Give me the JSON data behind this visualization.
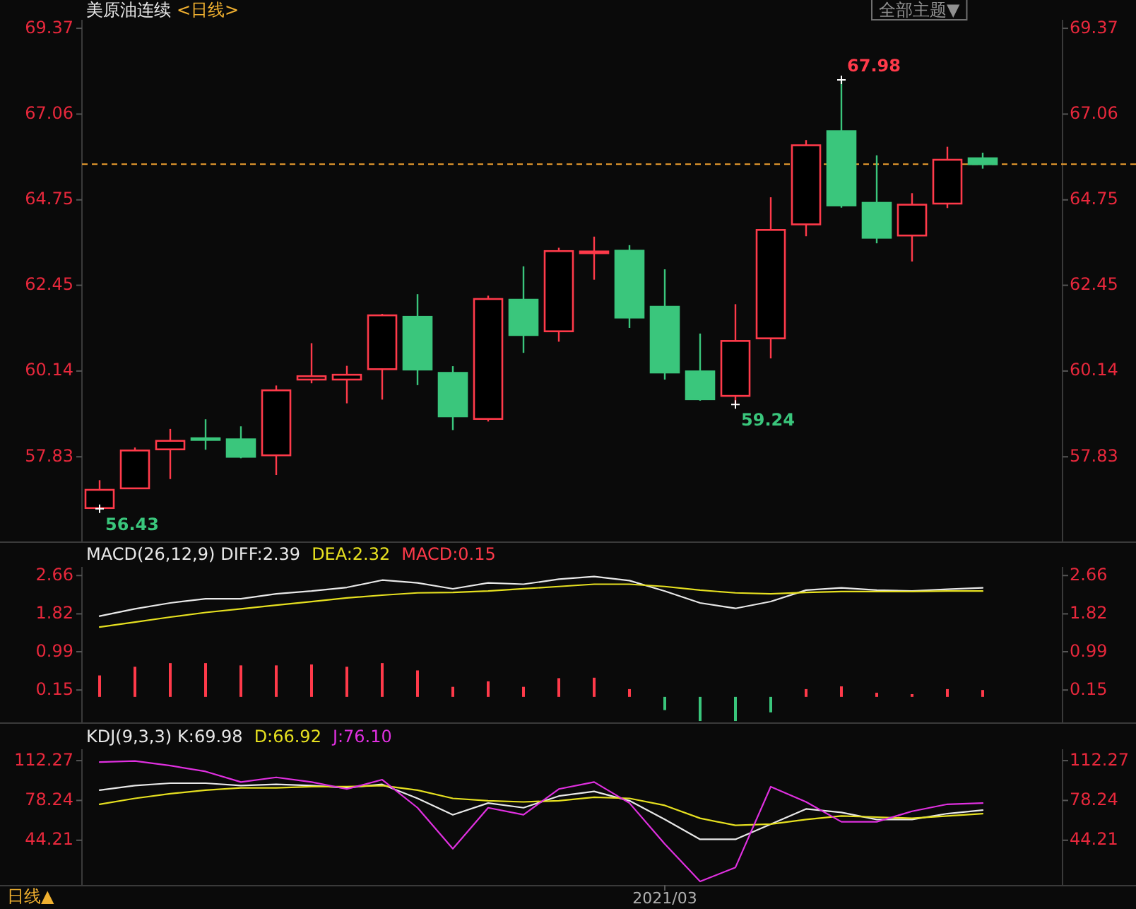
{
  "chart_data": [
    {
      "type": "candlestick",
      "title": "美原油连续",
      "subtitle": "<日线>",
      "tick_labels": "y",
      "categories": [
        null,
        null,
        null,
        null,
        null,
        null,
        null,
        null,
        null,
        null,
        null,
        null,
        null,
        null,
        null,
        null,
        null,
        null,
        null,
        null,
        null,
        null,
        null,
        null,
        null,
        null
      ],
      "ohlc": [
        [
          56.45,
          57.2,
          56.43,
          56.94
        ],
        [
          56.98,
          58.08,
          56.98,
          58.0
        ],
        [
          58.03,
          58.58,
          57.23,
          58.26
        ],
        [
          58.33,
          58.84,
          58.02,
          58.3
        ],
        [
          58.3,
          58.65,
          57.79,
          57.83
        ],
        [
          57.87,
          59.75,
          57.34,
          59.62
        ],
        [
          59.91,
          60.89,
          59.81,
          60.0
        ],
        [
          59.91,
          60.28,
          59.27,
          60.04
        ],
        [
          60.19,
          61.68,
          59.37,
          61.64
        ],
        [
          61.6,
          62.21,
          59.76,
          60.18
        ],
        [
          60.09,
          60.27,
          58.55,
          58.92
        ],
        [
          58.85,
          62.17,
          58.78,
          62.08
        ],
        [
          62.06,
          62.96,
          60.63,
          61.11
        ],
        [
          61.21,
          63.46,
          60.93,
          63.37
        ],
        [
          63.34,
          63.76,
          62.6,
          63.36
        ],
        [
          63.38,
          63.53,
          61.3,
          61.58
        ],
        [
          61.87,
          62.88,
          59.91,
          60.1
        ],
        [
          60.13,
          61.15,
          59.34,
          59.38
        ],
        [
          59.47,
          61.94,
          59.24,
          60.95
        ],
        [
          61.02,
          64.82,
          60.48,
          63.94
        ],
        [
          64.09,
          66.36,
          63.77,
          66.22
        ],
        [
          66.6,
          67.98,
          64.54,
          64.6
        ],
        [
          64.67,
          65.95,
          63.58,
          63.73
        ],
        [
          63.79,
          64.93,
          63.09,
          64.62
        ],
        [
          64.65,
          66.18,
          64.53,
          65.83
        ],
        [
          65.87,
          66.02,
          65.59,
          65.71
        ]
      ],
      "colors": [
        "#ff3a4a",
        "#ff3a4a",
        "#ff3a4a",
        "#3ac67c",
        "#3ac67c",
        "#ff3a4a",
        "#ff3a4a",
        "#ff3a4a",
        "#ff3a4a",
        "#3ac67c",
        "#3ac67c",
        "#ff3a4a",
        "#3ac67c",
        "#ff3a4a",
        "#ff3a4a",
        "#3ac67c",
        "#3ac67c",
        "#3ac67c",
        "#ff3a4a",
        "#ff3a4a",
        "#ff3a4a",
        "#3ac67c",
        "#3ac67c",
        "#ff3a4a",
        "#ff3a4a",
        "#3ac67c"
      ],
      "ylim": [
        55.55,
        69.6
      ],
      "yticks": [
        57.83,
        60.14,
        62.45,
        64.75,
        67.06,
        69.37
      ],
      "y2lim": [
        55.55,
        69.6
      ],
      "y2ticks": [
        57.83,
        60.14,
        62.45,
        64.75,
        67.06,
        69.37
      ],
      "ref_lines": [
        {
          "axis": "y",
          "value": 65.71,
          "color": "#f0a030",
          "line_style": "dashed"
        }
      ],
      "annotations": [
        "67.98",
        "59.24",
        "56.43",
        "全部主题▼"
      ]
    },
    {
      "type": "line",
      "title": "MACD(26,12,9)",
      "tick_labels": "y",
      "legend": "top left",
      "categories": [
        null,
        null,
        null,
        null,
        null,
        null,
        null,
        null,
        null,
        null,
        null,
        null,
        null,
        null,
        null,
        null,
        null,
        null,
        null,
        null,
        null,
        null,
        null,
        null,
        null,
        null
      ],
      "ylim": [
        -0.56,
        2.85
      ],
      "yticks": [
        0.15,
        0.99,
        1.82,
        2.66
      ],
      "y2lim": [
        -0.56,
        2.85
      ],
      "y2ticks": [
        0.15,
        0.99,
        1.82,
        2.66
      ],
      "series": [
        {
          "name": "DIFF:2.39",
          "type": "line",
          "color": "#e8e8e8",
          "values": [
            1.77,
            1.93,
            2.06,
            2.15,
            2.15,
            2.26,
            2.32,
            2.4,
            2.56,
            2.5,
            2.37,
            2.5,
            2.47,
            2.58,
            2.64,
            2.55,
            2.32,
            2.06,
            1.94,
            2.09,
            2.34,
            2.39,
            2.34,
            2.32,
            2.36,
            2.39
          ]
        },
        {
          "name": "DEA:2.32",
          "type": "line",
          "color": "#e6e020",
          "values": [
            1.53,
            1.64,
            1.75,
            1.85,
            1.93,
            2.01,
            2.09,
            2.17,
            2.23,
            2.28,
            2.29,
            2.32,
            2.37,
            2.42,
            2.47,
            2.47,
            2.42,
            2.34,
            2.28,
            2.26,
            2.29,
            2.31,
            2.31,
            2.31,
            2.32,
            2.32
          ]
        },
        {
          "name": "MACD:0.15",
          "type": "bar",
          "color": "#ff3a4a",
          "colors": [
            "#ff3a4a",
            "#ff3a4a",
            "#ff3a4a",
            "#ff3a4a",
            "#ff3a4a",
            "#ff3a4a",
            "#ff3a4a",
            "#ff3a4a",
            "#ff3a4a",
            "#ff3a4a",
            "#ff3a4a",
            "#ff3a4a",
            "#ff3a4a",
            "#ff3a4a",
            "#ff3a4a",
            "#ff3a4a",
            "#3ac67c",
            "#3ac67c",
            "#3ac67c",
            "#3ac67c",
            "#ff3a4a",
            "#ff3a4a",
            "#ff3a4a",
            "#ff3a4a",
            "#ff3a4a",
            "#ff3a4a"
          ],
          "values": [
            0.47,
            0.66,
            0.74,
            0.74,
            0.69,
            0.69,
            0.71,
            0.66,
            0.74,
            0.58,
            0.22,
            0.34,
            0.22,
            0.41,
            0.42,
            0.17,
            -0.29,
            -0.53,
            -0.53,
            -0.34,
            0.17,
            0.23,
            0.09,
            0.06,
            0.17,
            0.15
          ]
        }
      ]
    },
    {
      "type": "line",
      "title": "KDJ(9,3,3)",
      "legend": "top left",
      "categories": [
        null,
        null,
        null,
        null,
        null,
        null,
        null,
        null,
        null,
        null,
        null,
        null,
        null,
        null,
        null,
        null,
        "2021/03",
        null,
        null,
        null,
        null,
        null,
        null,
        null,
        null,
        null
      ],
      "ylim": [
        6,
        122
      ],
      "yticks": [
        44.21,
        78.24,
        112.27
      ],
      "y2lim": [
        6,
        122
      ],
      "y2ticks": [
        44.21,
        78.24,
        112.27
      ],
      "series": [
        {
          "name": "K:69.98",
          "color": "#e8e8e8",
          "values": [
            87,
            91,
            93,
            93,
            91,
            92,
            91,
            89,
            92,
            80,
            66,
            76,
            72,
            82,
            86,
            78,
            62,
            45,
            45,
            58,
            71,
            68,
            62,
            62,
            67,
            70
          ]
        },
        {
          "name": "D:66.92",
          "color": "#e6e020",
          "values": [
            75,
            80,
            84,
            87,
            89,
            89,
            90,
            90,
            91,
            87,
            80,
            78,
            77,
            78,
            81,
            80,
            74,
            63,
            57,
            58,
            62,
            65,
            64,
            63,
            65,
            67
          ]
        },
        {
          "name": "J:76.10",
          "color": "#e030e0",
          "values": [
            111,
            112,
            108,
            103,
            94,
            98,
            94,
            88,
            96,
            72,
            37,
            72,
            66,
            88,
            94,
            76,
            41,
            9,
            21,
            90,
            77,
            60,
            60,
            69,
            75,
            76
          ]
        }
      ],
      "annotations": [
        "日线▲"
      ]
    }
  ]
}
